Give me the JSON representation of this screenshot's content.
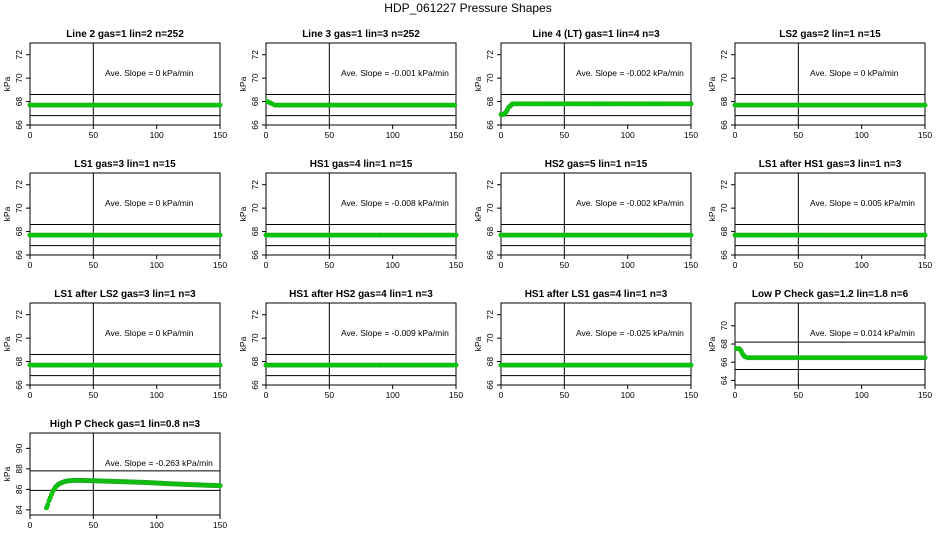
{
  "title": "HDP_061227  Pressure Shapes",
  "colors": {
    "points": "#00cc00",
    "point_stroke": "#22aa22",
    "lines": "#000000"
  },
  "chart_data": [
    {
      "type": "scatter",
      "title": "Line 2 gas=1 lin=2 n=252",
      "ylabel": "kPa",
      "annotation": "Ave. Slope = 0 kPa/min",
      "xlim": [
        0,
        150
      ],
      "ylim": [
        66,
        73
      ],
      "xticks": [
        "0",
        "50",
        "100",
        "150"
      ],
      "yticks": [
        "66",
        "68",
        "70",
        "72"
      ],
      "vline": 50,
      "hlines": [
        66.8,
        68.6
      ],
      "flat": 67.7
    },
    {
      "type": "scatter",
      "title": "Line 3 gas=1 lin=3 n=252",
      "ylabel": "kPa",
      "annotation": "Ave. Slope = -0.001  kPa/min",
      "xlim": [
        0,
        150
      ],
      "ylim": [
        66,
        73
      ],
      "xticks": [
        "0",
        "50",
        "100",
        "150"
      ],
      "yticks": [
        "66",
        "68",
        "70",
        "72"
      ],
      "vline": 50,
      "hlines": [
        66.8,
        68.6
      ],
      "flat": 67.7,
      "start": [
        [
          1,
          68
        ],
        [
          3,
          67.9
        ],
        [
          5,
          67.8
        ],
        [
          7,
          67.7
        ]
      ]
    },
    {
      "type": "scatter",
      "title": "Line 4 (LT) gas=1 lin=4 n=3",
      "ylabel": "kPa",
      "annotation": "Ave. Slope = -0.002  kPa/min",
      "xlim": [
        0,
        150
      ],
      "ylim": [
        66,
        73
      ],
      "xticks": [
        "0",
        "50",
        "100",
        "150"
      ],
      "yticks": [
        "66",
        "68",
        "70",
        "72"
      ],
      "vline": 50,
      "hlines": [
        66.8,
        68.6
      ],
      "flat": 67.8,
      "start": [
        [
          0,
          66.9
        ],
        [
          1,
          66.9
        ],
        [
          2,
          66.9
        ],
        [
          3,
          67
        ],
        [
          4,
          67.1
        ],
        [
          5,
          67.3
        ],
        [
          6,
          67.5
        ],
        [
          7,
          67.6
        ],
        [
          8,
          67.7
        ],
        [
          9,
          67.8
        ],
        [
          10,
          67.8
        ],
        [
          12,
          67.8
        ]
      ]
    },
    {
      "type": "scatter",
      "title": "LS2 gas=2 lin=1 n=15",
      "ylabel": "kPa",
      "annotation": "Ave. Slope = 0 kPa/min",
      "xlim": [
        0,
        150
      ],
      "ylim": [
        66,
        73
      ],
      "xticks": [
        "0",
        "50",
        "100",
        "150"
      ],
      "yticks": [
        "66",
        "68",
        "70",
        "72"
      ],
      "vline": 50,
      "hlines": [
        66.8,
        68.6
      ],
      "flat": 67.7
    },
    {
      "type": "scatter",
      "title": "LS1 gas=3 lin=1 n=15",
      "ylabel": "kPa",
      "annotation": "Ave. Slope = 0 kPa/min",
      "xlim": [
        0,
        150
      ],
      "ylim": [
        66,
        73
      ],
      "xticks": [
        "0",
        "50",
        "100",
        "150"
      ],
      "yticks": [
        "66",
        "68",
        "70",
        "72"
      ],
      "vline": 50,
      "hlines": [
        66.8,
        68.6
      ],
      "flat": 67.7
    },
    {
      "type": "scatter",
      "title": "HS1 gas=4 lin=1 n=15",
      "ylabel": "kPa",
      "annotation": "Ave. Slope = -0.008  kPa/min",
      "xlim": [
        0,
        150
      ],
      "ylim": [
        66,
        73
      ],
      "xticks": [
        "0",
        "50",
        "100",
        "150"
      ],
      "yticks": [
        "66",
        "68",
        "70",
        "72"
      ],
      "vline": 50,
      "hlines": [
        66.8,
        68.6
      ],
      "flat": 67.7
    },
    {
      "type": "scatter",
      "title": "HS2 gas=5 lin=1 n=15",
      "ylabel": "kPa",
      "annotation": "Ave. Slope = -0.002  kPa/min",
      "xlim": [
        0,
        150
      ],
      "ylim": [
        66,
        73
      ],
      "xticks": [
        "0",
        "50",
        "100",
        "150"
      ],
      "yticks": [
        "66",
        "68",
        "70",
        "72"
      ],
      "vline": 50,
      "hlines": [
        66.8,
        68.6
      ],
      "flat": 67.7
    },
    {
      "type": "scatter",
      "title": "LS1 after HS1 gas=3 lin=1 n=3",
      "ylabel": "kPa",
      "annotation": "Ave. Slope = 0.005  kPa/min",
      "xlim": [
        0,
        150
      ],
      "ylim": [
        66,
        73
      ],
      "xticks": [
        "0",
        "50",
        "100",
        "150"
      ],
      "yticks": [
        "66",
        "68",
        "70",
        "72"
      ],
      "vline": 50,
      "hlines": [
        66.8,
        68.6
      ],
      "flat": 67.7
    },
    {
      "type": "scatter",
      "title": "LS1 after LS2 gas=3 lin=1 n=3",
      "ylabel": "kPa",
      "annotation": "Ave. Slope = 0 kPa/min",
      "xlim": [
        0,
        150
      ],
      "ylim": [
        66,
        73
      ],
      "xticks": [
        "0",
        "50",
        "100",
        "150"
      ],
      "yticks": [
        "66",
        "68",
        "70",
        "72"
      ],
      "vline": 50,
      "hlines": [
        66.8,
        68.6
      ],
      "flat": 67.7
    },
    {
      "type": "scatter",
      "title": "HS1 after HS2 gas=4 lin=1 n=3",
      "ylabel": "kPa",
      "annotation": "Ave. Slope = -0.009  kPa/min",
      "xlim": [
        0,
        150
      ],
      "ylim": [
        66,
        73
      ],
      "xticks": [
        "0",
        "50",
        "100",
        "150"
      ],
      "yticks": [
        "66",
        "68",
        "70",
        "72"
      ],
      "vline": 50,
      "hlines": [
        66.8,
        68.6
      ],
      "flat": 67.7
    },
    {
      "type": "scatter",
      "title": "HS1 after LS1 gas=4 lin=1 n=3",
      "ylabel": "kPa",
      "annotation": "Ave. Slope = -0.025  kPa/min",
      "xlim": [
        0,
        150
      ],
      "ylim": [
        66,
        73
      ],
      "xticks": [
        "0",
        "50",
        "100",
        "150"
      ],
      "yticks": [
        "66",
        "68",
        "70",
        "72"
      ],
      "vline": 50,
      "hlines": [
        66.8,
        68.6
      ],
      "flat": 67.7
    },
    {
      "type": "scatter",
      "title": "Low P Check gas=1.2 lin=1.8 n=6",
      "ylabel": "kPa",
      "annotation": "Ave. Slope = 0.014  kPa/min",
      "xlim": [
        0,
        150
      ],
      "ylim": [
        63.5,
        72.5
      ],
      "xticks": [
        "0",
        "50",
        "100",
        "150"
      ],
      "yticks": [
        "64",
        "66",
        "68",
        "70"
      ],
      "vline": 50,
      "hlines": [
        65.2,
        68.2
      ],
      "flat": 66.5,
      "start": [
        [
          1,
          67.5
        ],
        [
          3,
          67.5
        ],
        [
          4,
          67.4
        ],
        [
          5,
          67.2
        ],
        [
          6,
          66.9
        ],
        [
          7,
          66.7
        ],
        [
          8,
          66.6
        ],
        [
          10,
          66.5
        ],
        [
          12,
          66.5
        ]
      ]
    },
    {
      "type": "scatter",
      "title": "High P Check gas=1 lin=0.8 n=3",
      "ylabel": "kPa",
      "annotation": "Ave. Slope = -0.263  kPa/min",
      "xlim": [
        0,
        150
      ],
      "ylim": [
        83.5,
        91.5
      ],
      "xticks": [
        "0",
        "50",
        "100",
        "150"
      ],
      "yticks": [
        "84",
        "86",
        "88",
        "90"
      ],
      "vline": 50,
      "hlines": [
        85.9,
        87.8
      ],
      "curve": [
        [
          13,
          84.2
        ],
        [
          14,
          84.5
        ],
        [
          15,
          84.9
        ],
        [
          16,
          85.2
        ],
        [
          17,
          85.5
        ],
        [
          18,
          85.8
        ],
        [
          19,
          86.0
        ],
        [
          20,
          86.2
        ],
        [
          22,
          86.45
        ],
        [
          24,
          86.6
        ],
        [
          26,
          86.7
        ],
        [
          28,
          86.78
        ],
        [
          30,
          86.83
        ],
        [
          33,
          86.86
        ],
        [
          36,
          86.88
        ],
        [
          40,
          86.88
        ],
        [
          45,
          86.86
        ],
        [
          50,
          86.84
        ],
        [
          60,
          86.8
        ],
        [
          70,
          86.76
        ],
        [
          80,
          86.72
        ],
        [
          90,
          86.68
        ],
        [
          100,
          86.62
        ],
        [
          110,
          86.55
        ],
        [
          120,
          86.5
        ],
        [
          130,
          86.45
        ],
        [
          140,
          86.4
        ],
        [
          150,
          86.36
        ]
      ]
    }
  ]
}
